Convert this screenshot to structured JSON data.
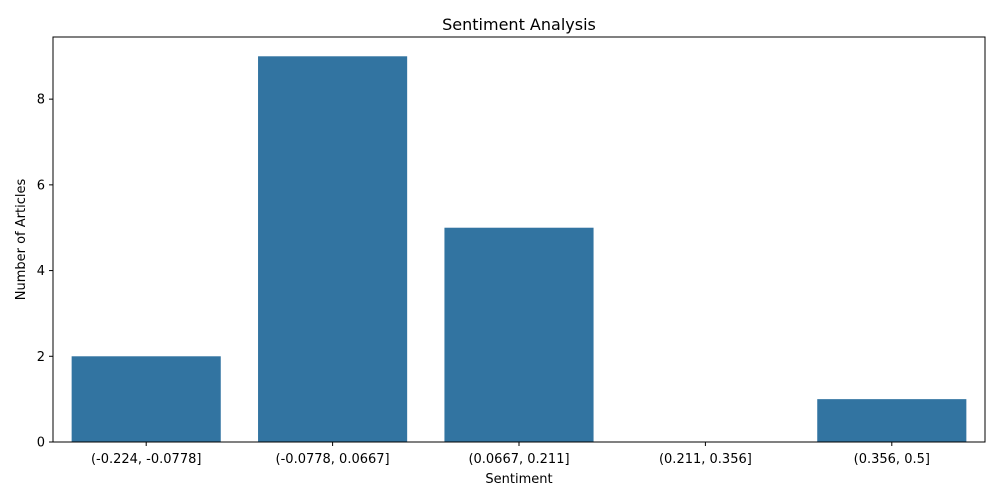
{
  "chart_data": {
    "type": "bar",
    "title": "Sentiment Analysis",
    "xlabel": "Sentiment",
    "ylabel": "Number of Articles",
    "categories": [
      "(-0.224, -0.0778]",
      "(-0.0778, 0.0667]",
      "(0.0667, 0.211]",
      "(0.211, 0.356]",
      "(0.356, 0.5]"
    ],
    "values": [
      2,
      9,
      5,
      0,
      1
    ],
    "ylim": [
      0,
      9.45
    ],
    "yticks": [
      0,
      2,
      4,
      6,
      8
    ],
    "grid": false,
    "bar_color": "#3274a1"
  }
}
